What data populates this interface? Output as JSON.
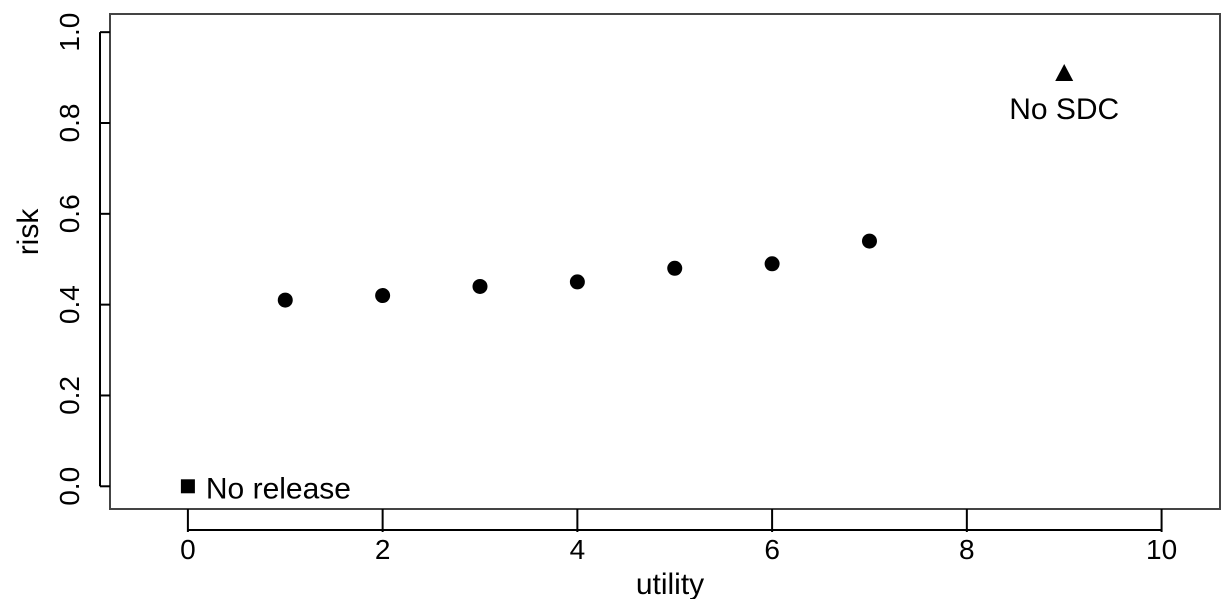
{
  "chart_data": {
    "type": "scatter",
    "title": "",
    "xlabel": "utility",
    "ylabel": "risk",
    "xlim": [
      -0.8,
      10.6
    ],
    "ylim": [
      -0.05,
      1.04
    ],
    "x_ticks": [
      0,
      2,
      4,
      6,
      8,
      10
    ],
    "x_tick_labels": [
      "0",
      "2",
      "4",
      "6",
      "8",
      "10"
    ],
    "y_ticks": [
      0.0,
      0.2,
      0.4,
      0.6,
      0.8,
      1.0
    ],
    "y_tick_labels": [
      "0.0",
      "0.2",
      "0.4",
      "0.6",
      "0.8",
      "1.0"
    ],
    "grid": false,
    "series": [
      {
        "marker": "circle",
        "x": [
          1,
          2,
          3,
          4,
          5,
          6,
          7
        ],
        "y": [
          0.41,
          0.42,
          0.44,
          0.45,
          0.48,
          0.49,
          0.54
        ]
      },
      {
        "marker": "square",
        "x": [
          0
        ],
        "y": [
          0.0
        ],
        "label": "No release"
      },
      {
        "marker": "triangle",
        "x": [
          9
        ],
        "y": [
          0.91
        ],
        "label": "No SDC"
      }
    ],
    "color": "#000000"
  }
}
